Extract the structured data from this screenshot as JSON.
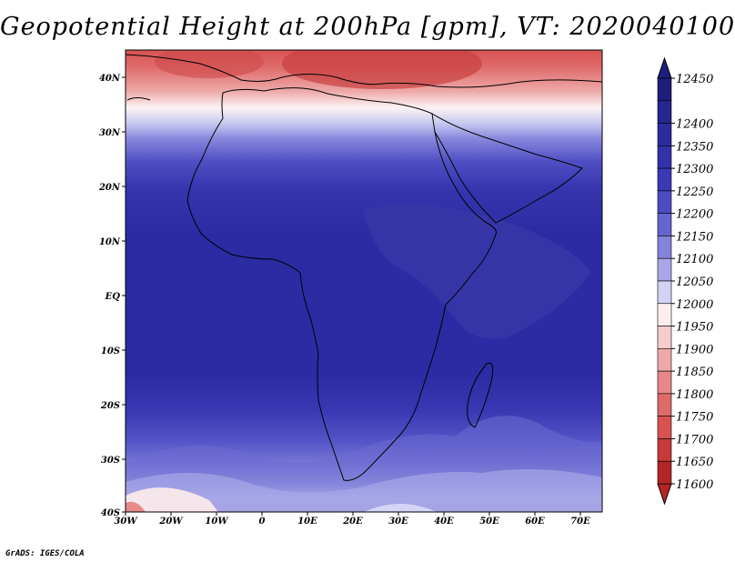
{
  "title": "Geopotential Height at 200hPa [gpm], VT: 2020040100",
  "footer": "GrADS: IGES/COLA",
  "map": {
    "variable": "Geopotential Height",
    "level": "200hPa",
    "units": "gpm",
    "valid_time": "2020040100",
    "lat_labels": [
      "40N",
      "30N",
      "20N",
      "10N",
      "EQ",
      "10S",
      "20S",
      "30S",
      "40S"
    ],
    "lon_labels": [
      "30W",
      "20W",
      "10W",
      "0",
      "10E",
      "20E",
      "30E",
      "40E",
      "50E",
      "60E",
      "70E"
    ]
  },
  "colorbar": {
    "levels": [
      {
        "value": "12450",
        "color": "#1e1e7c"
      },
      {
        "value": "12400",
        "color": "#26268f"
      },
      {
        "value": "12350",
        "color": "#2b2ba0"
      },
      {
        "value": "12300",
        "color": "#3232ab"
      },
      {
        "value": "12250",
        "color": "#3a3ab7"
      },
      {
        "value": "12200",
        "color": "#4b4bc4"
      },
      {
        "value": "12150",
        "color": "#6565d0"
      },
      {
        "value": "12100",
        "color": "#8484dc"
      },
      {
        "value": "12050",
        "color": "#a8a8e8"
      },
      {
        "value": "12000",
        "color": "#d2d2f4"
      },
      {
        "value": "11950",
        "color": "#fdeeee"
      },
      {
        "value": "11900",
        "color": "#f7cccc"
      },
      {
        "value": "11850",
        "color": "#eeaaaa"
      },
      {
        "value": "11800",
        "color": "#e68888"
      },
      {
        "value": "11750",
        "color": "#df6a6a"
      },
      {
        "value": "11700",
        "color": "#d85252"
      },
      {
        "value": "11650",
        "color": "#c83a3a"
      },
      {
        "value": "11600",
        "color": "#b22626"
      }
    ]
  }
}
